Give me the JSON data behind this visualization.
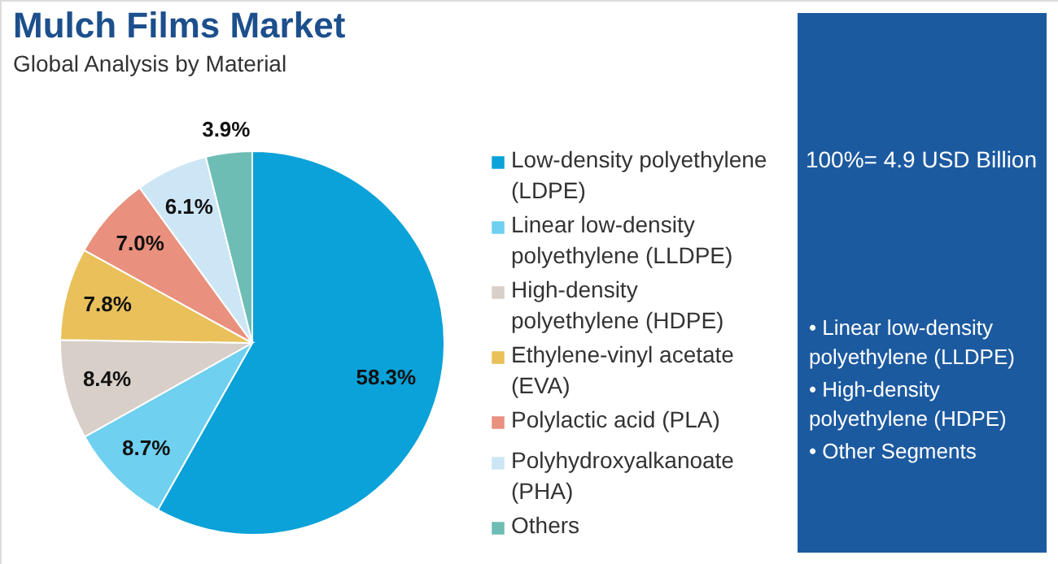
{
  "chart_data": {
    "type": "pie",
    "title": "Mulch Films Market",
    "subtitle": "Global Analysis by Material",
    "categories": [
      "Low-density polyethylene (LDPE)",
      "Linear low-density polyethylene (LLDPE)",
      "High-density polyethylene (HDPE)",
      "Ethylene-vinyl acetate (EVA)",
      "Polylactic acid (PLA)",
      "Polyhydroxyalkanoate (PHA)",
      "Others"
    ],
    "values": [
      58.3,
      8.7,
      8.4,
      7.8,
      7.0,
      6.1,
      3.9
    ],
    "colors": [
      "#0aa2d8",
      "#6fd0f0",
      "#d9cfc9",
      "#e9c05a",
      "#e9907e",
      "#cde6f5",
      "#6dbdb5"
    ],
    "value_labels": [
      "58.3%",
      "8.7%",
      "8.4%",
      "7.8%",
      "7.0%",
      "6.1%",
      "3.9%"
    ],
    "legend": "right",
    "annotations": [
      "100%= 4.9 USD Billion",
      "• Linear low-density polyethylene (LLDPE)",
      "• High-density polyethylene (HDPE)",
      "• Other Segments"
    ]
  }
}
